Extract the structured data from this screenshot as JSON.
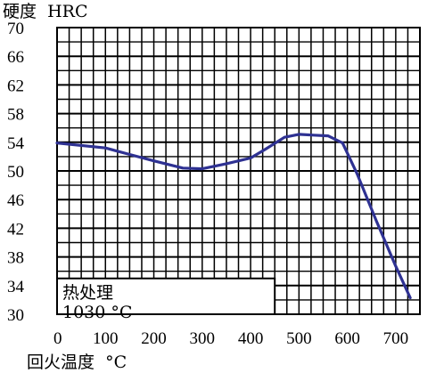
{
  "chart_data": {
    "type": "line",
    "ylabel": "硬度  HRC",
    "xlabel": "回火温度  °C",
    "xlim": [
      0,
      750
    ],
    "ylim": [
      30,
      70
    ],
    "xticks": [
      "0",
      "100",
      "200",
      "300",
      "400",
      "500",
      "600",
      "700"
    ],
    "yticks": [
      "70",
      "66",
      "62",
      "58",
      "54",
      "50",
      "46",
      "42",
      "38",
      "34",
      "30"
    ],
    "grid": true,
    "annotation": {
      "line1": "热处理",
      "line2": "1030 °C"
    },
    "series_color": "#2e3192",
    "series": [
      {
        "x": [
          0,
          100,
          150,
          200,
          260,
          300,
          350,
          400,
          430,
          470,
          500,
          530,
          560,
          590,
          620,
          660,
          700,
          730
        ],
        "y": [
          53.9,
          53.2,
          52.3,
          51.4,
          50.4,
          50.3,
          51.0,
          51.8,
          53.0,
          54.7,
          55.1,
          55.0,
          54.9,
          53.9,
          49.6,
          43.0,
          36.7,
          32.3
        ]
      }
    ]
  }
}
